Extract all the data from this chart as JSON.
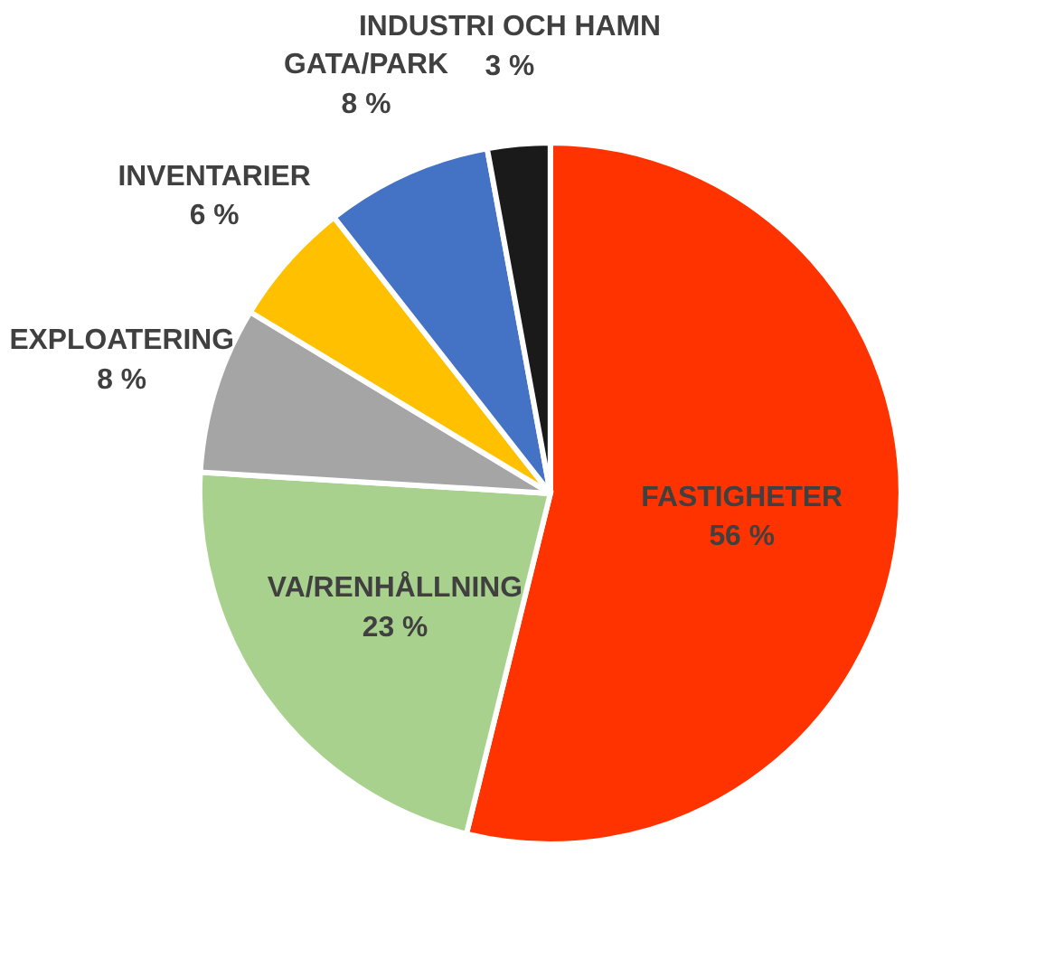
{
  "chart_data": {
    "type": "pie",
    "categories": [
      "FASTIGHETER",
      "VA/RENHÅLLNING",
      "EXPLOATERING",
      "INVENTARIER",
      "GATA/PARK",
      "INDUSTRI OCH HAMN"
    ],
    "values": [
      56,
      23,
      8,
      6,
      8,
      3
    ],
    "value_labels": [
      "56 %",
      "23 %",
      "8 %",
      "6 %",
      "8 %",
      "3 %"
    ],
    "colors": [
      "#ff3300",
      "#a9d18e",
      "#a5a5a5",
      "#ffc000",
      "#4472c4",
      "#1a1a1a"
    ],
    "legend": false
  }
}
